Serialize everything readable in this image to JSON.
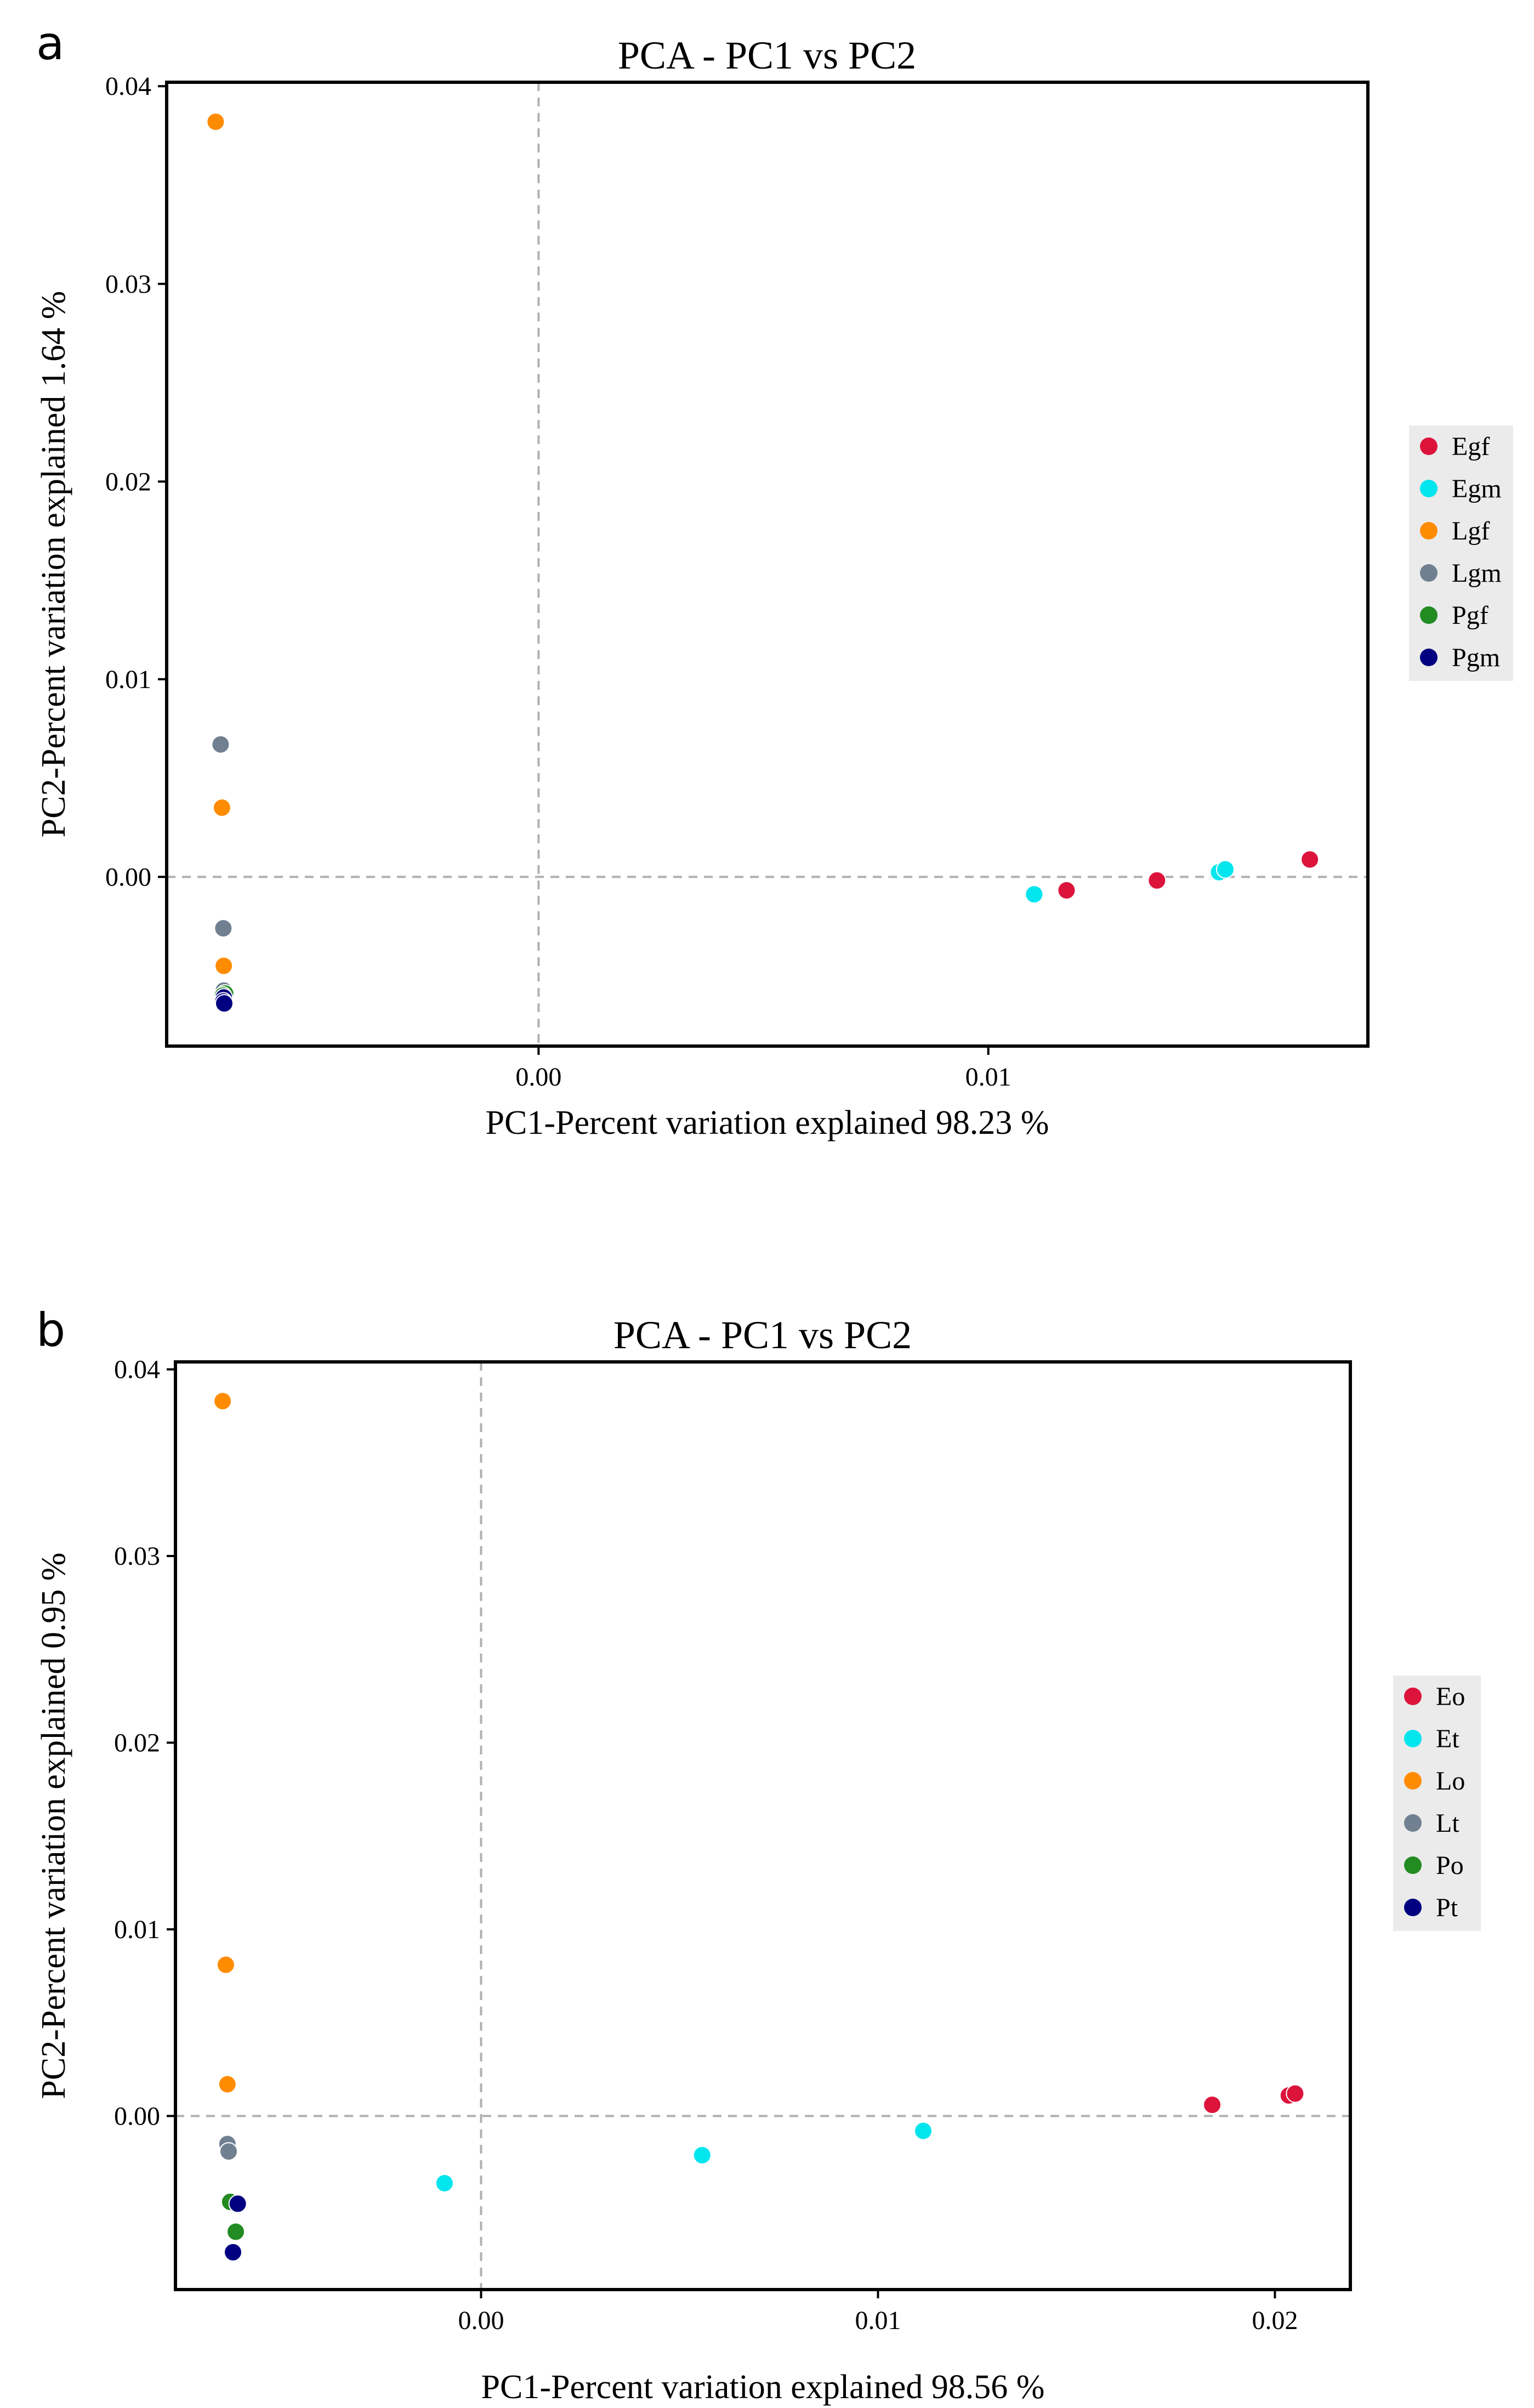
{
  "panels": [
    {
      "label": "a",
      "legend_title": "",
      "legend_position": "right"
    },
    {
      "label": "b",
      "legend_title": "",
      "legend_position": "right"
    }
  ],
  "chart_data": [
    {
      "type": "scatter",
      "title": "PCA - PC1 vs PC2",
      "xlabel": "PC1-Percent variation explained 98.23 %",
      "ylabel": "PC2-Percent variation explained 1.64 %",
      "xlim": [
        -0.00827,
        0.01844
      ],
      "ylim": [
        -0.00856,
        0.0402
      ],
      "xticks": [
        0.0,
        0.01
      ],
      "xtick_labels": [
        "0.00",
        "0.01"
      ],
      "yticks": [
        0.0,
        0.01,
        0.02,
        0.03,
        0.04
      ],
      "ytick_labels": [
        "0.00",
        "0.01",
        "0.02",
        "0.03",
        "0.04"
      ],
      "zero_lines": true,
      "grid": false,
      "series": [
        {
          "name": "Egf",
          "color": "#dc143c",
          "points": [
            [
              0.01174,
              -0.00068
            ],
            [
              0.01375,
              -0.00018
            ],
            [
              0.01715,
              0.00088
            ]
          ]
        },
        {
          "name": "Egm",
          "color": "#00e5ee",
          "points": [
            [
              0.01102,
              -0.00088
            ],
            [
              0.01513,
              0.00024
            ],
            [
              0.01527,
              0.00038
            ]
          ]
        },
        {
          "name": "Lgf",
          "color": "#ff8c00",
          "points": [
            [
              -0.00718,
              0.0382
            ],
            [
              -0.00704,
              0.0035
            ],
            [
              -0.007,
              -0.0045
            ]
          ]
        },
        {
          "name": "Lgm",
          "color": "#708090",
          "points": [
            [
              -0.00707,
              0.0067
            ],
            [
              -0.00701,
              -0.0026
            ],
            [
              -0.007,
              -0.00575
            ]
          ]
        },
        {
          "name": "Pgf",
          "color": "#228b22",
          "points": [
            [
              -0.00697,
              -0.0059
            ],
            [
              -0.00702,
              -0.006
            ]
          ]
        },
        {
          "name": "Pgm",
          "color": "#000080",
          "points": [
            [
              -0.007,
              -0.0061
            ],
            [
              -0.00701,
              -0.0063
            ],
            [
              -0.00699,
              -0.0064
            ]
          ]
        }
      ]
    },
    {
      "type": "scatter",
      "title": "PCA - PC1 vs PC2",
      "xlabel": "PC1-Percent variation explained 98.56 %",
      "ylabel": "PC2-Percent variation explained 0.95 %",
      "xlim": [
        -0.0077,
        0.0219
      ],
      "ylim": [
        -0.0093,
        0.0404
      ],
      "xticks": [
        0.0,
        0.01,
        0.02
      ],
      "xtick_labels": [
        "0.00",
        "0.01",
        "0.02"
      ],
      "yticks": [
        0.0,
        0.01,
        0.02,
        0.03,
        0.04
      ],
      "ytick_labels": [
        "0.00",
        "0.01",
        "0.02",
        "0.03",
        "0.04"
      ],
      "zero_lines": true,
      "grid": false,
      "series": [
        {
          "name": "Eo",
          "color": "#dc143c",
          "points": [
            [
              0.01842,
              0.0006
            ],
            [
              0.02035,
              0.0011
            ],
            [
              0.02051,
              0.0012
            ]
          ]
        },
        {
          "name": "Et",
          "color": "#00e5ee",
          "points": [
            [
              -0.00092,
              -0.0036
            ],
            [
              0.00557,
              -0.0021
            ],
            [
              0.01114,
              -0.0008
            ]
          ]
        },
        {
          "name": "Lo",
          "color": "#ff8c00",
          "points": [
            [
              -0.00651,
              0.0383
            ],
            [
              -0.00643,
              0.0081
            ],
            [
              -0.00639,
              0.0017
            ]
          ]
        },
        {
          "name": "Lt",
          "color": "#708090",
          "points": [
            [
              -0.00639,
              -0.0015
            ],
            [
              -0.00636,
              -0.0019
            ]
          ]
        },
        {
          "name": "Po",
          "color": "#228b22",
          "points": [
            [
              -0.00632,
              -0.0046
            ],
            [
              -0.00618,
              -0.0062
            ]
          ]
        },
        {
          "name": "Pt",
          "color": "#000080",
          "points": [
            [
              -0.00613,
              -0.0047
            ],
            [
              -0.00625,
              -0.0073
            ]
          ]
        }
      ]
    }
  ]
}
